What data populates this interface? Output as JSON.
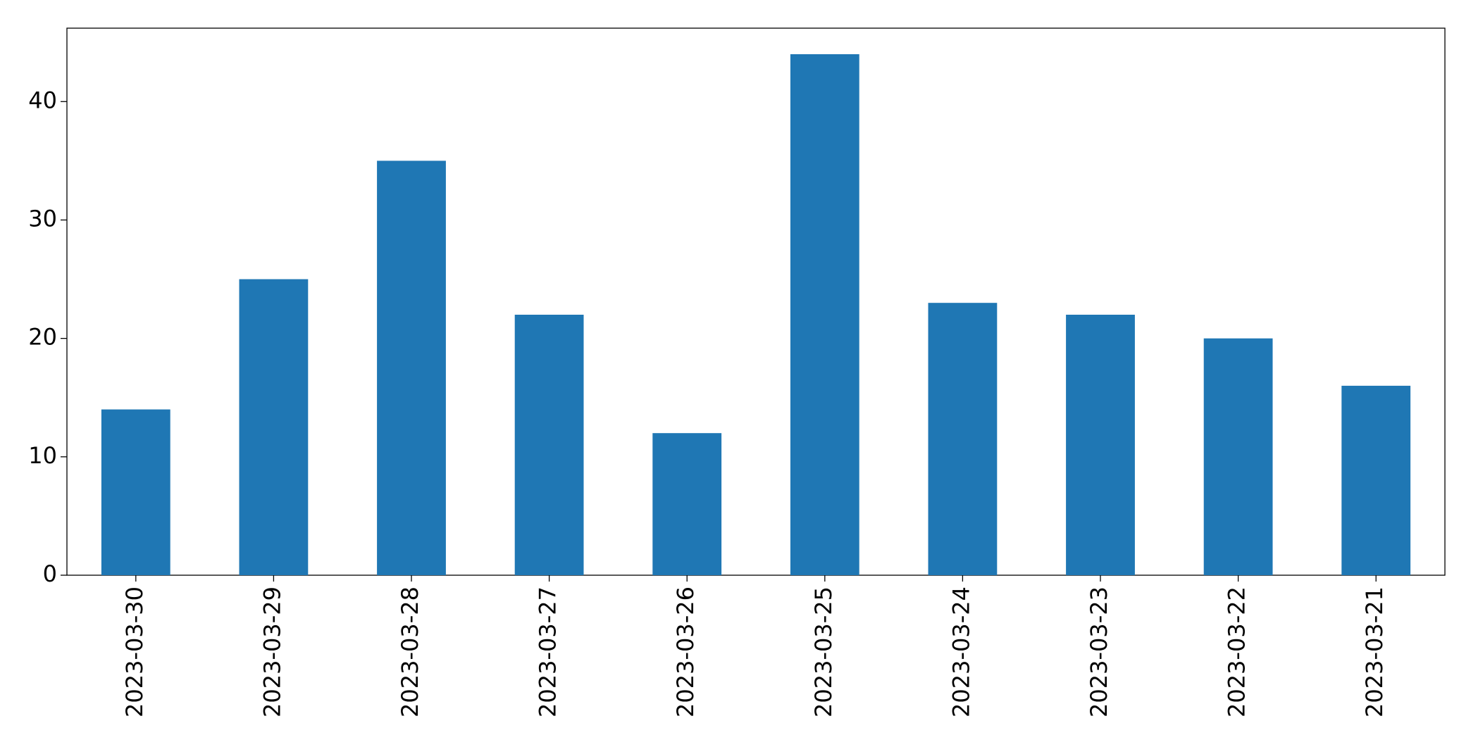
{
  "chart_data": {
    "type": "bar",
    "categories": [
      "2023-03-30",
      "2023-03-29",
      "2023-03-28",
      "2023-03-27",
      "2023-03-26",
      "2023-03-25",
      "2023-03-24",
      "2023-03-23",
      "2023-03-22",
      "2023-03-21"
    ],
    "values": [
      14,
      25,
      35,
      22,
      12,
      44,
      23,
      22,
      20,
      16
    ],
    "color": "#1f77b4",
    "ylim": [
      0,
      46.2
    ],
    "yticks": [
      0,
      10,
      20,
      30,
      40
    ],
    "grid": false
  }
}
